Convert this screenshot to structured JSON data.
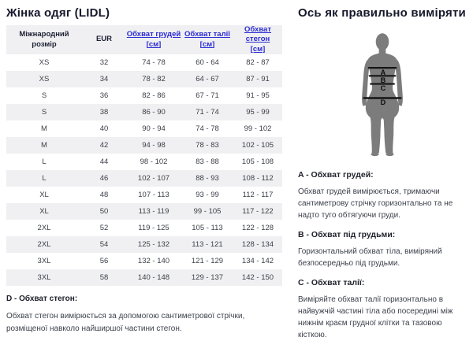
{
  "left": {
    "title": "Жінка одяг (LIDL)",
    "table": {
      "headers": [
        {
          "label": "Міжнародний розмір"
        },
        {
          "label": "EUR"
        },
        {
          "label": "Обхват грудей",
          "unit": "[см]"
        },
        {
          "label": "Обхват талії",
          "unit": "[см]"
        },
        {
          "label": "Обхват стегон",
          "unit": "[см]"
        }
      ],
      "rows": [
        [
          "XS",
          "32",
          "74 - 78",
          "60 - 64",
          "82 - 87"
        ],
        [
          "XS",
          "34",
          "78 - 82",
          "64 - 67",
          "87 - 91"
        ],
        [
          "S",
          "36",
          "82 - 86",
          "67 - 71",
          "91 - 95"
        ],
        [
          "S",
          "38",
          "86 - 90",
          "71 - 74",
          "95 - 99"
        ],
        [
          "M",
          "40",
          "90 - 94",
          "74 - 78",
          "99 - 102"
        ],
        [
          "M",
          "42",
          "94 - 98",
          "78 - 83",
          "102 - 105"
        ],
        [
          "L",
          "44",
          "98 - 102",
          "83 - 88",
          "105 - 108"
        ],
        [
          "L",
          "46",
          "102 - 107",
          "88 - 93",
          "108 - 112"
        ],
        [
          "XL",
          "48",
          "107 - 113",
          "93 - 99",
          "112 - 117"
        ],
        [
          "XL",
          "50",
          "113 - 119",
          "99 - 105",
          "117 - 122"
        ],
        [
          "2XL",
          "52",
          "119 - 125",
          "105 - 113",
          "122 - 128"
        ],
        [
          "2XL",
          "54",
          "125 - 132",
          "113 - 121",
          "128 - 134"
        ],
        [
          "3XL",
          "56",
          "132 - 140",
          "121 - 129",
          "134 - 142"
        ],
        [
          "3XL",
          "58",
          "140 - 148",
          "129 - 137",
          "142 - 150"
        ]
      ]
    },
    "note_d": {
      "heading": "D - Обхват стегон:",
      "text": "Обхват стегон вимірюється за допомогою сантиметрової стрічки, розміщеної навколо найширшої частини стегон."
    }
  },
  "right": {
    "title": "Ось як правильно виміряти",
    "figure": {
      "labels": [
        "A",
        "B",
        "C",
        "D"
      ]
    },
    "sections": [
      {
        "heading": "A - Обхват грудей:",
        "text": "Обхват грудей вимірюється, тримаючи сантиметрову стрічку горизонтально та не надто туго обтягуючи груди."
      },
      {
        "heading": "B - Обхват під грудьми:",
        "text": "Горизонтальний обхват тіла, виміряний безпосередньо під грудьми."
      },
      {
        "heading": "C - Обхват талії:",
        "text": "Виміряйте обхват талії горизонтально в найвужчій частині тіла або посередині між нижнім краєм грудної клітки та тазовою кісткою."
      }
    ]
  },
  "colors": {
    "link_blue": "#2b2bd3",
    "stripe_gray": "#f0f0f2",
    "silhouette_gray": "#7c7c7c",
    "band_black": "#151515",
    "title_dark": "#16182b"
  }
}
